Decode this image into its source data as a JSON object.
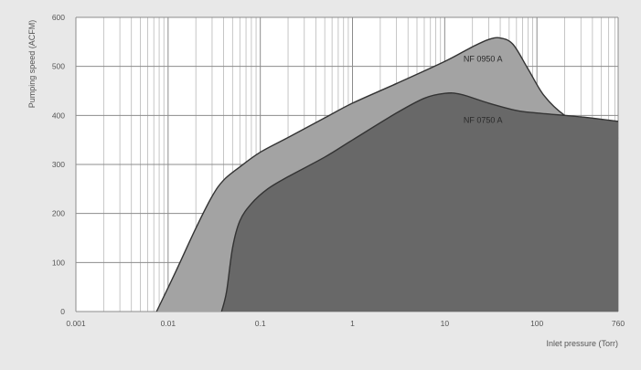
{
  "chart_data": {
    "type": "area",
    "x_scale": "log",
    "xlabel": "Inlet pressure (Torr)",
    "ylabel": "Pumping speed (ACFM)",
    "xlim": [
      0.001,
      760
    ],
    "ylim": [
      0,
      600
    ],
    "x_ticks": [
      {
        "value": 0.001,
        "label": "0.001"
      },
      {
        "value": 0.01,
        "label": "0.01"
      },
      {
        "value": 0.1,
        "label": "0.1"
      },
      {
        "value": 1,
        "label": "1"
      },
      {
        "value": 10,
        "label": "10"
      },
      {
        "value": 100,
        "label": "100"
      },
      {
        "value": 760,
        "label": "760"
      }
    ],
    "y_ticks": [
      {
        "value": 0,
        "label": "0"
      },
      {
        "value": 100,
        "label": "100"
      },
      {
        "value": 200,
        "label": "200"
      },
      {
        "value": 300,
        "label": "300"
      },
      {
        "value": 400,
        "label": "400"
      },
      {
        "value": 500,
        "label": "500"
      },
      {
        "value": 600,
        "label": "600"
      }
    ],
    "grid": true,
    "series": [
      {
        "name": "NF 0950 A",
        "color": "#a3a3a3",
        "label_at": {
          "x": 16,
          "y": 510
        },
        "points": [
          [
            0.0075,
            0
          ],
          [
            0.012,
            80
          ],
          [
            0.02,
            170
          ],
          [
            0.03,
            235
          ],
          [
            0.04,
            268
          ],
          [
            0.06,
            295
          ],
          [
            0.1,
            325
          ],
          [
            0.2,
            355
          ],
          [
            0.5,
            395
          ],
          [
            1,
            425
          ],
          [
            3,
            465
          ],
          [
            10,
            510
          ],
          [
            20,
            540
          ],
          [
            30,
            555
          ],
          [
            40,
            558
          ],
          [
            55,
            545
          ],
          [
            80,
            495
          ],
          [
            120,
            440
          ],
          [
            200,
            400
          ],
          [
            400,
            370
          ],
          [
            760,
            353
          ]
        ]
      },
      {
        "name": "NF 0750 A",
        "color": "#686868",
        "label_at": {
          "x": 16,
          "y": 385
        },
        "points": [
          [
            0.038,
            0
          ],
          [
            0.043,
            40
          ],
          [
            0.05,
            130
          ],
          [
            0.06,
            185
          ],
          [
            0.08,
            220
          ],
          [
            0.12,
            250
          ],
          [
            0.2,
            275
          ],
          [
            0.5,
            315
          ],
          [
            1,
            350
          ],
          [
            3,
            405
          ],
          [
            6,
            435
          ],
          [
            10,
            445
          ],
          [
            15,
            443
          ],
          [
            30,
            425
          ],
          [
            60,
            410
          ],
          [
            100,
            405
          ],
          [
            300,
            397
          ],
          [
            760,
            388
          ]
        ]
      }
    ]
  }
}
